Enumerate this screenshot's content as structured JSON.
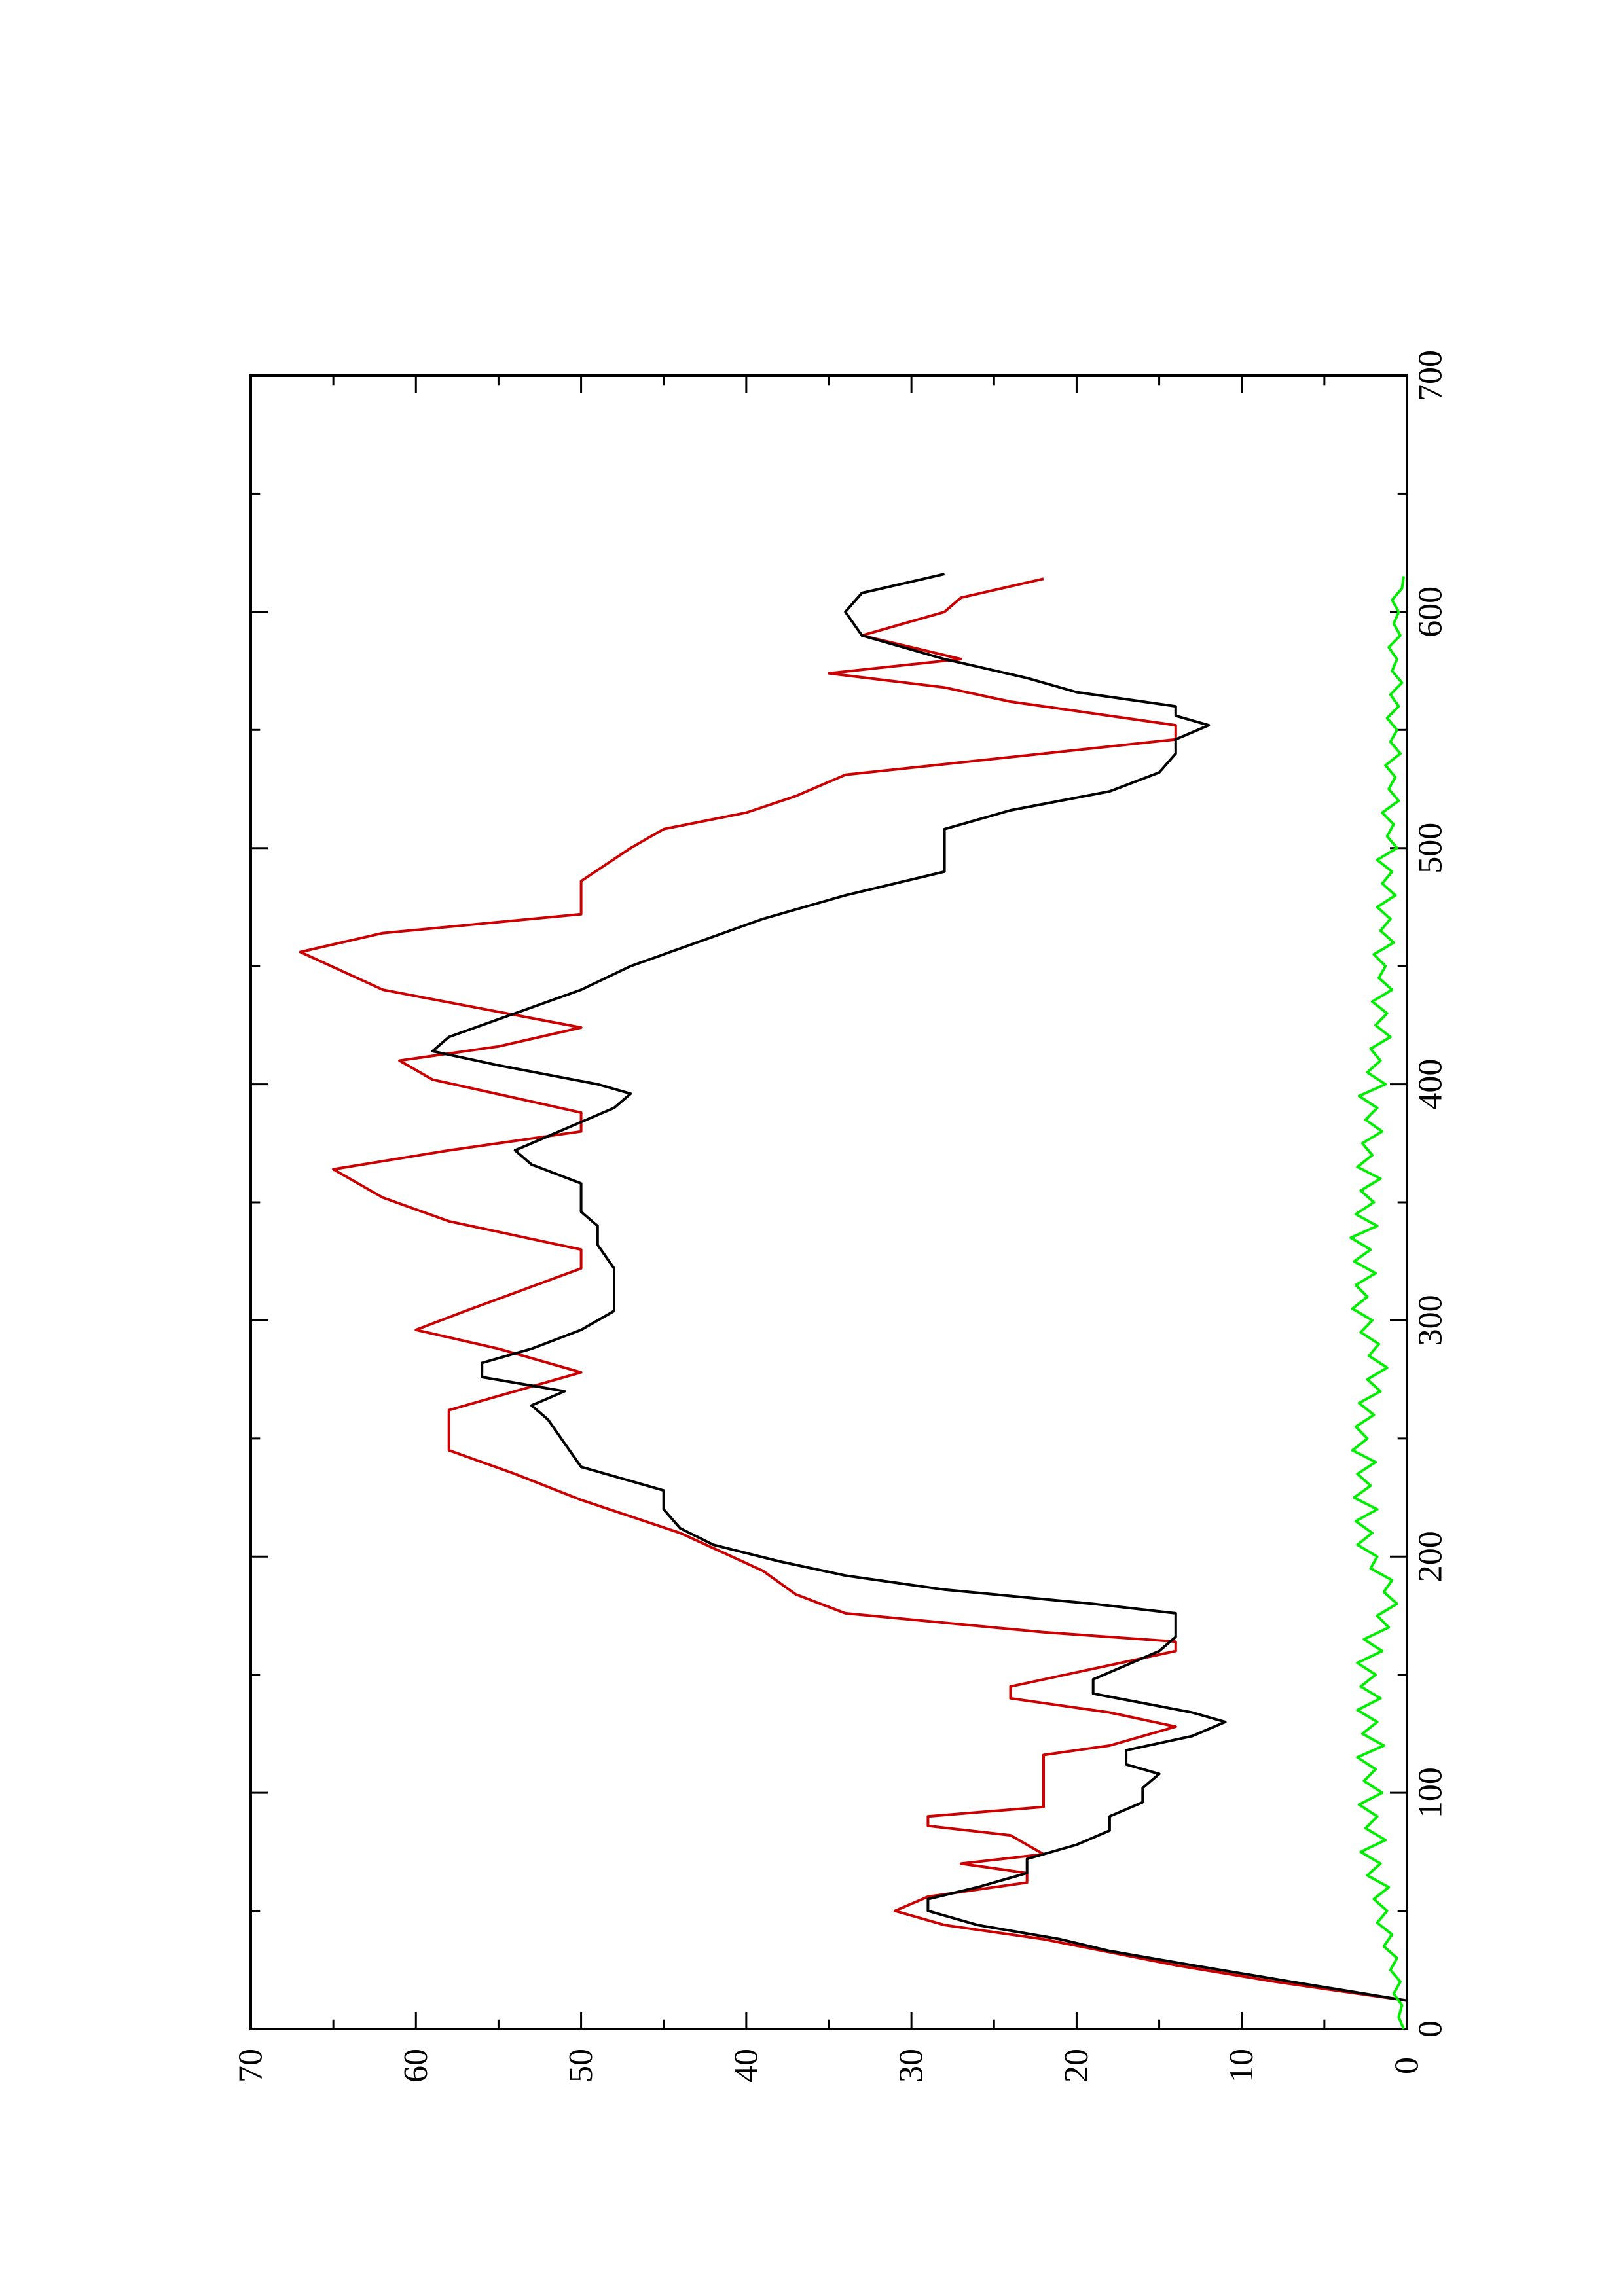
{
  "chart_data": {
    "type": "line",
    "orientation": "rotated-90",
    "title": "",
    "xlabel": "",
    "ylabel": "",
    "xlim": [
      0,
      700
    ],
    "ylim": [
      0,
      70
    ],
    "x_ticks": [
      0,
      100,
      200,
      300,
      400,
      500,
      600,
      700
    ],
    "y_ticks": [
      0,
      10,
      20,
      30,
      40,
      50,
      60,
      70
    ],
    "x_tick_labels": [
      "0",
      "100",
      "200",
      "300",
      "400",
      "500",
      "600",
      "700"
    ],
    "y_tick_labels": [
      "0",
      "10",
      "20",
      "30",
      "40",
      "50",
      "60",
      "70"
    ],
    "grid": false,
    "legend": "none",
    "series": [
      {
        "color": "#cc0000",
        "x": [
          12,
          20,
          27,
          38,
          44,
          50,
          56,
          62,
          66,
          70,
          74,
          82,
          86,
          90,
          94,
          116,
          120,
          128,
          134,
          140,
          145,
          154,
          160,
          164,
          168,
          176,
          184,
          194,
          210,
          224,
          235,
          245,
          262,
          270,
          278,
          288,
          296,
          304,
          322,
          330,
          342,
          352,
          364,
          372,
          380,
          388,
          402,
          410,
          416,
          424,
          436,
          440,
          456,
          464,
          472,
          486,
          500,
          508,
          515,
          522,
          531,
          540,
          546,
          552,
          558,
          562,
          568,
          574,
          580,
          590,
          600,
          606,
          614
        ],
        "y": [
          0,
          8,
          14,
          22,
          28,
          31,
          29,
          23,
          23,
          27,
          22,
          24,
          29,
          29,
          22,
          22,
          18,
          14,
          18,
          24,
          24,
          18,
          14,
          14,
          22,
          34,
          37,
          39,
          44,
          50,
          54,
          58,
          58,
          54,
          50,
          55,
          60,
          57,
          50,
          50,
          58,
          62,
          65,
          58,
          50,
          50,
          59,
          61,
          55,
          50,
          59,
          62,
          67,
          62,
          50,
          50,
          47,
          45,
          40,
          37,
          34,
          22,
          14,
          14,
          20,
          24,
          28,
          35,
          27,
          33,
          28,
          27,
          22
        ],
        "note_values": []
      },
      {
        "color": "#000000",
        "x": [
          12,
          20,
          27,
          33,
          38,
          44,
          50,
          55,
          60,
          66,
          72,
          78,
          84,
          90,
          96,
          102,
          108,
          112,
          118,
          124,
          130,
          134,
          138,
          142,
          148,
          154,
          160,
          166,
          170,
          176,
          180,
          186,
          192,
          198,
          205,
          212,
          220,
          228,
          238,
          248,
          258,
          264,
          270,
          276,
          282,
          288,
          296,
          304,
          312,
          322,
          332,
          340,
          346,
          352,
          358,
          366,
          372,
          378,
          384,
          390,
          396,
          400,
          408,
          414,
          420,
          430,
          440,
          450,
          460,
          470,
          480,
          490,
          500,
          508,
          516,
          524,
          532,
          540,
          546,
          552,
          556,
          560,
          566,
          572,
          580,
          590,
          600,
          608,
          616
        ],
        "y": [
          0,
          7,
          13,
          18,
          21,
          26,
          29,
          29,
          26,
          23,
          23,
          20,
          18,
          18,
          16,
          16,
          15,
          17,
          17,
          13,
          11,
          13,
          16,
          19,
          19,
          17,
          15,
          14,
          14,
          14,
          19,
          28,
          34,
          38,
          42,
          44,
          45,
          45,
          50,
          51,
          52,
          53,
          51,
          56,
          56,
          53,
          50,
          48,
          48,
          48,
          49,
          49,
          50,
          50,
          50,
          53,
          54,
          52,
          50,
          48,
          47,
          49,
          55,
          59,
          58,
          54,
          50,
          47,
          43,
          39,
          34,
          28,
          28,
          28,
          24,
          18,
          15,
          14,
          14,
          12,
          14,
          14,
          20,
          23,
          28,
          33,
          34,
          33,
          28
        ],
        "note_values": []
      },
      {
        "color": "#00ee00",
        "x": [
          0,
          5,
          10,
          15,
          20,
          25,
          30,
          35,
          40,
          45,
          50,
          55,
          60,
          65,
          70,
          75,
          80,
          85,
          90,
          95,
          100,
          105,
          110,
          115,
          120,
          125,
          130,
          135,
          140,
          145,
          150,
          155,
          160,
          165,
          170,
          175,
          180,
          185,
          190,
          195,
          200,
          205,
          210,
          215,
          220,
          225,
          230,
          235,
          240,
          245,
          250,
          255,
          260,
          265,
          270,
          275,
          280,
          285,
          290,
          295,
          300,
          305,
          310,
          315,
          320,
          325,
          330,
          335,
          340,
          345,
          350,
          355,
          360,
          365,
          370,
          375,
          380,
          385,
          390,
          395,
          400,
          405,
          410,
          415,
          420,
          425,
          430,
          435,
          440,
          445,
          450,
          455,
          460,
          465,
          470,
          475,
          480,
          485,
          490,
          495,
          500,
          505,
          510,
          515,
          520,
          525,
          530,
          535,
          540,
          545,
          550,
          555,
          560,
          565,
          570,
          575,
          580,
          585,
          590,
          595,
          600,
          605,
          610,
          615
        ],
        "y": [
          0.2,
          0.5,
          0.3,
          0.8,
          0.4,
          1.0,
          0.6,
          1.4,
          0.9,
          1.8,
          1.2,
          2.0,
          1.1,
          2.4,
          1.6,
          2.8,
          1.3,
          2.5,
          1.8,
          2.9,
          1.5,
          2.6,
          1.9,
          3.0,
          1.4,
          2.7,
          1.8,
          3.0,
          1.6,
          2.8,
          1.9,
          3.0,
          1.5,
          2.6,
          1.1,
          1.8,
          0.6,
          1.4,
          0.9,
          2.2,
          1.8,
          3.0,
          2.1,
          3.1,
          1.8,
          3.2,
          2.2,
          3.0,
          1.9,
          3.3,
          2.4,
          3.1,
          2.0,
          2.9,
          1.6,
          2.4,
          1.2,
          2.3,
          1.7,
          2.8,
          2.1,
          3.3,
          2.4,
          3.1,
          1.9,
          3.2,
          2.2,
          3.4,
          1.8,
          3.1,
          2.0,
          2.8,
          1.6,
          3.0,
          2.1,
          2.7,
          1.5,
          2.5,
          1.8,
          2.9,
          1.3,
          2.4,
          1.6,
          2.2,
          1.0,
          1.9,
          1.2,
          2.1,
          0.9,
          1.7,
          1.3,
          2.0,
          0.8,
          1.6,
          1.0,
          1.8,
          0.7,
          1.5,
          0.9,
          1.8,
          0.6,
          1.2,
          0.8,
          1.5,
          0.5,
          1.1,
          0.7,
          1.3,
          0.4,
          1.0,
          0.6,
          1.2,
          0.5,
          1.0,
          0.3,
          0.9,
          0.6,
          1.1,
          0.4,
          0.8,
          0.5,
          0.9,
          0.3,
          0.2
        ],
        "note_values": []
      }
    ]
  }
}
